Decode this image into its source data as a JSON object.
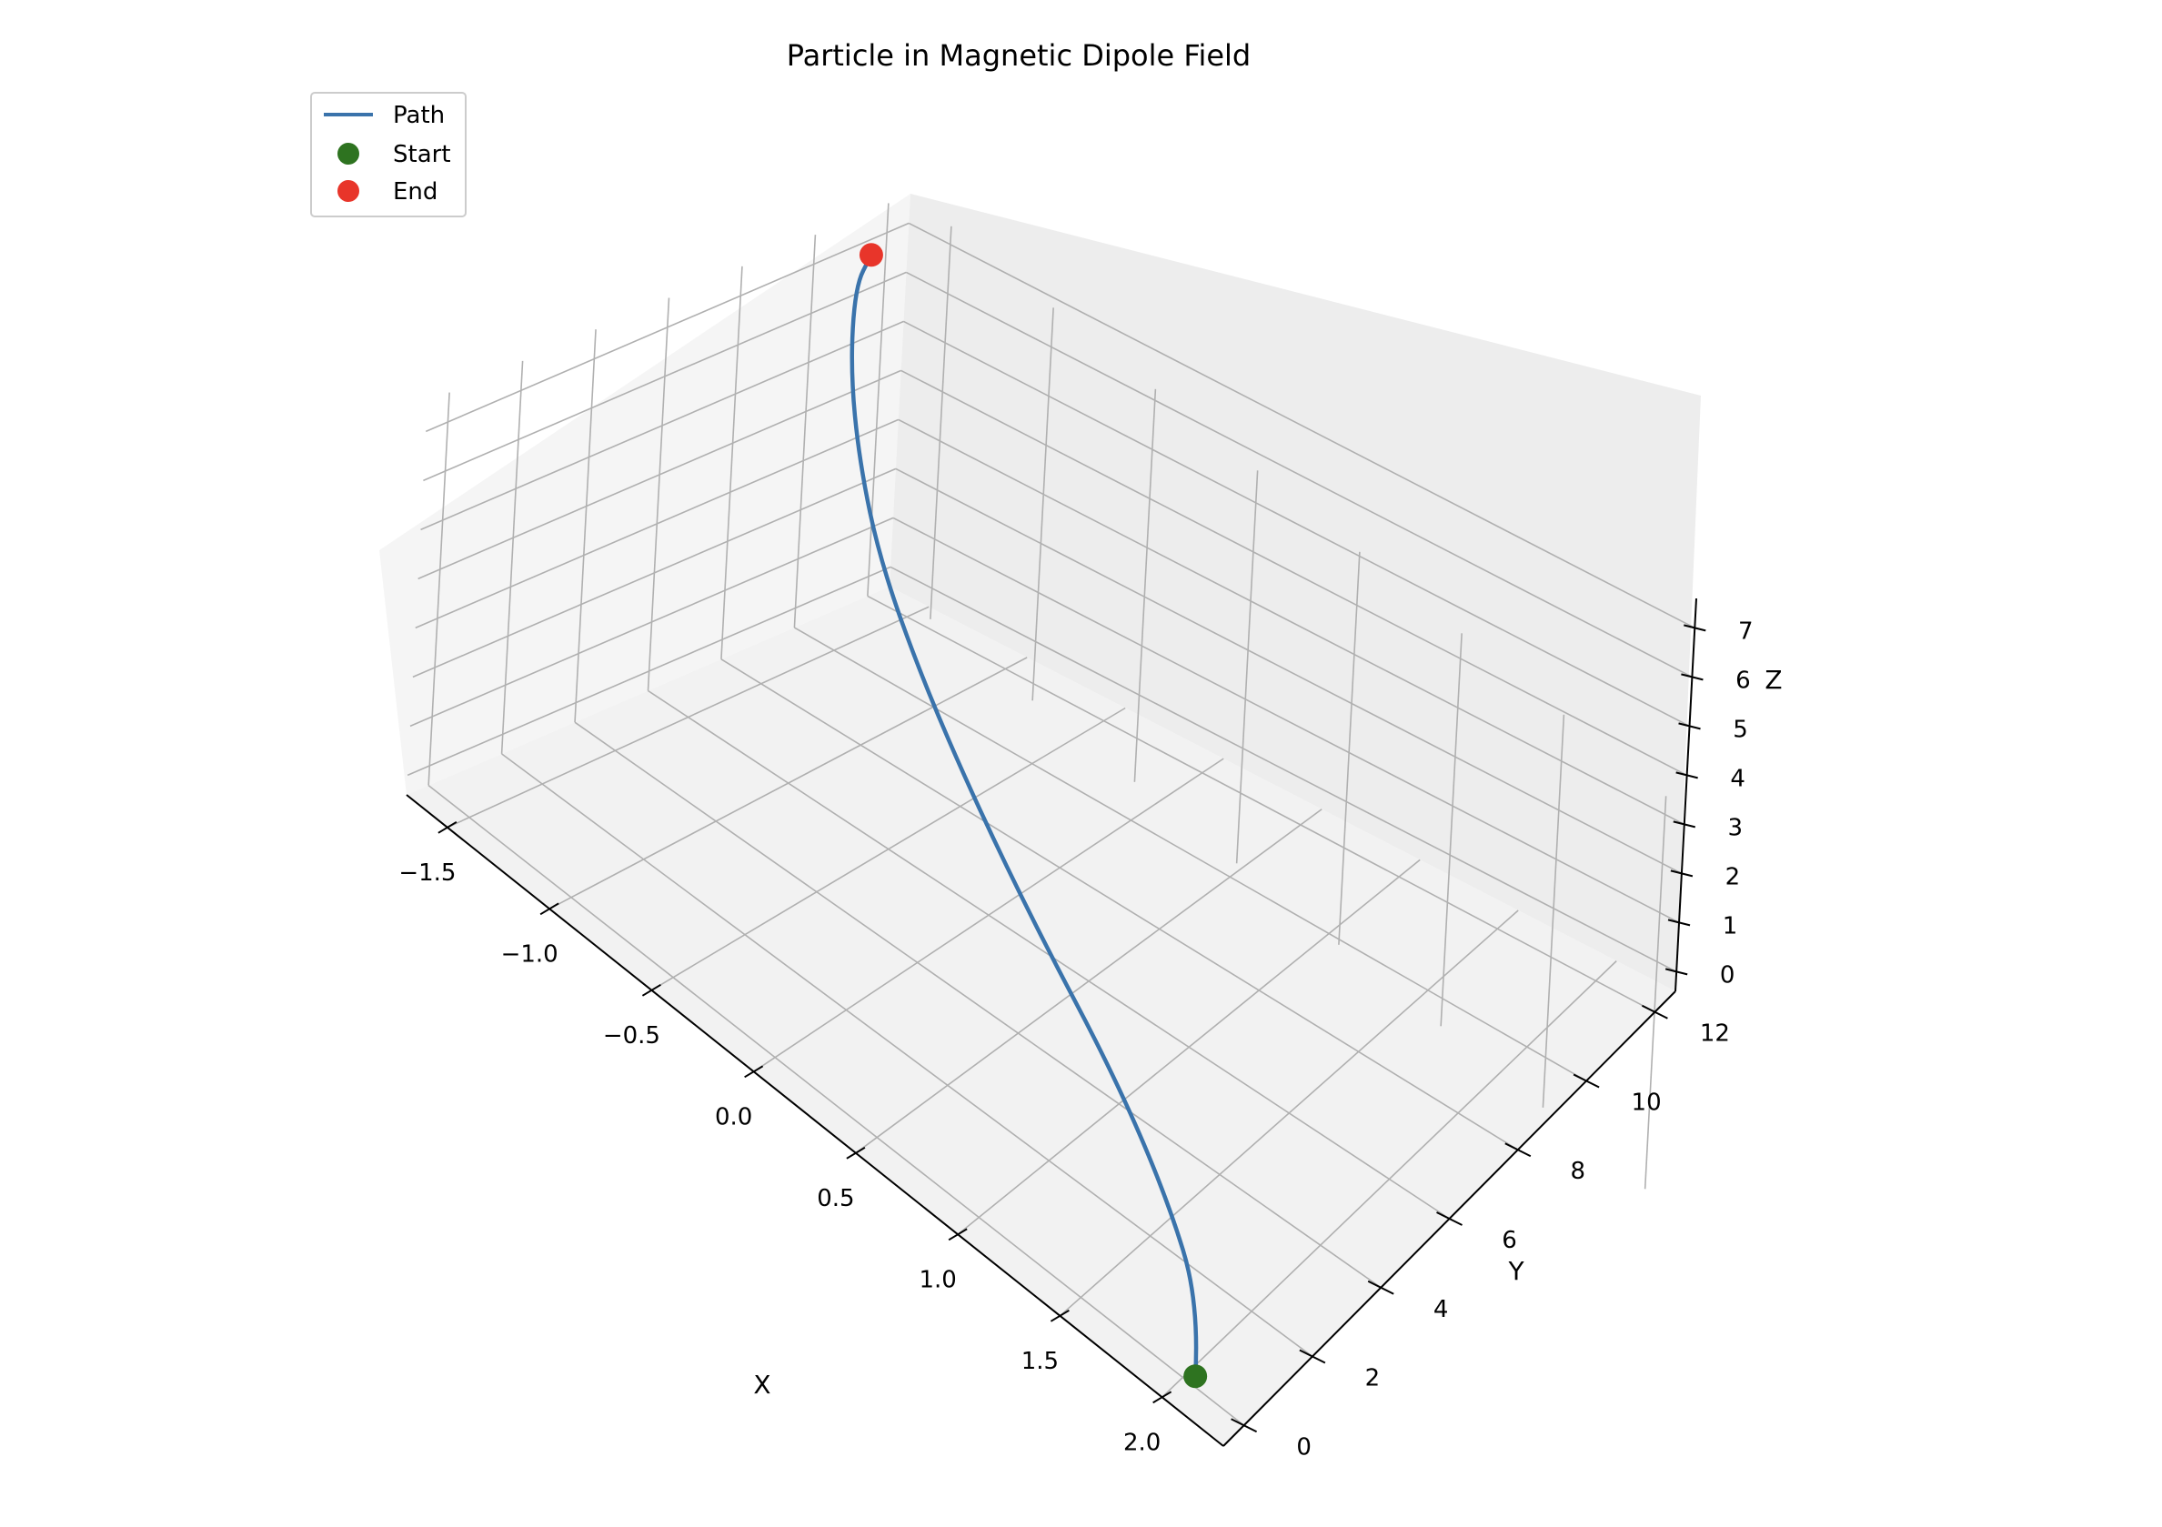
{
  "chart_data": {
    "type": "line3d",
    "title": "Particle in Magnetic Dipole Field",
    "xlabel": "X",
    "ylabel": "Y",
    "zlabel": "Z",
    "xlim": [
      -1.7,
      2.3
    ],
    "ylim": [
      -0.6,
      12.6
    ],
    "zlim": [
      -0.4,
      7.6
    ],
    "xticks": [
      "−1.5",
      "−1.0",
      "−0.5",
      "0.0",
      "0.5",
      "1.0",
      "1.5",
      "2.0"
    ],
    "yticks": [
      "0",
      "2",
      "4",
      "6",
      "8",
      "10",
      "12"
    ],
    "zticks": [
      "0",
      "1",
      "2",
      "3",
      "4",
      "5",
      "6",
      "7"
    ],
    "grid": true,
    "legend": {
      "placement": "upper-left",
      "entries": [
        "Path",
        "Start",
        "End"
      ]
    },
    "series": [
      {
        "name": "Path",
        "kind": "line",
        "color": "#3a73ab",
        "points": [
          {
            "x": 2.05,
            "y": 0.0,
            "z": 0.0
          },
          {
            "x": 1.9,
            "y": 0.9,
            "z": 0.7
          },
          {
            "x": 1.55,
            "y": 1.9,
            "z": 1.4
          },
          {
            "x": 1.1,
            "y": 2.9,
            "z": 2.1
          },
          {
            "x": 0.55,
            "y": 3.9,
            "z": 2.8
          },
          {
            "x": 0.05,
            "y": 4.9,
            "z": 3.5
          },
          {
            "x": -0.4,
            "y": 5.9,
            "z": 4.2
          },
          {
            "x": -0.8,
            "y": 6.95,
            "z": 4.9
          },
          {
            "x": -1.1,
            "y": 8.0,
            "z": 5.6
          },
          {
            "x": -1.35,
            "y": 9.1,
            "z": 6.3
          },
          {
            "x": -1.55,
            "y": 10.3,
            "z": 6.95
          },
          {
            "x": -1.6,
            "y": 11.0,
            "z": 7.2
          }
        ]
      },
      {
        "name": "Start",
        "kind": "point",
        "color": "#2e7320",
        "point": {
          "x": 2.05,
          "y": 0.0,
          "z": 0.0
        }
      },
      {
        "name": "End",
        "kind": "point",
        "color": "#e8352a",
        "point": {
          "x": -1.6,
          "y": 11.0,
          "z": 7.2
        }
      }
    ]
  }
}
